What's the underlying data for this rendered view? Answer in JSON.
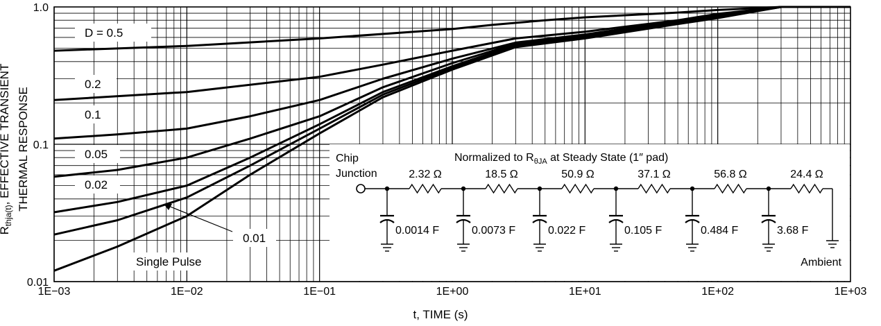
{
  "chart_data": {
    "type": "line",
    "x_scale": "log",
    "y_scale": "log",
    "xlim": [
      0.001,
      1000
    ],
    "ylim": [
      0.01,
      1.0
    ],
    "xlabel": "t, TIME (s)",
    "ylabel_line1_main": "R",
    "ylabel_line1_sub": "thja(t)",
    "ylabel_line1_rest": ", EFFECTIVE TRANSIENT",
    "ylabel_line2": "THERMAL RESPONSE",
    "x_ticks": [
      {
        "value": 0.001,
        "label": "1E−03"
      },
      {
        "value": 0.01,
        "label": "1E−02"
      },
      {
        "value": 0.1,
        "label": "1E−01"
      },
      {
        "value": 1,
        "label": "1E+00"
      },
      {
        "value": 10,
        "label": "1E+01"
      },
      {
        "value": 100,
        "label": "1E+02"
      },
      {
        "value": 1000,
        "label": "1E+03"
      }
    ],
    "y_ticks": [
      {
        "value": 0.01,
        "label": "0.01"
      },
      {
        "value": 0.1,
        "label": "0.1"
      },
      {
        "value": 1.0,
        "label": "1.0"
      }
    ],
    "grid": true,
    "series": [
      {
        "name": "D = 0.5",
        "x": [
          0.001,
          0.01,
          0.1,
          1,
          2,
          5,
          10,
          50,
          100,
          300,
          1000
        ],
        "y": [
          0.48,
          0.52,
          0.59,
          0.69,
          0.74,
          0.8,
          0.84,
          0.91,
          0.95,
          1.0,
          1.0
        ]
      },
      {
        "name": "0.2",
        "x": [
          0.001,
          0.01,
          0.1,
          0.3,
          1,
          3,
          10,
          50,
          100,
          300,
          1000
        ],
        "y": [
          0.21,
          0.24,
          0.31,
          0.38,
          0.48,
          0.59,
          0.66,
          0.8,
          0.89,
          1.0,
          1.0
        ]
      },
      {
        "name": "0.1",
        "x": [
          0.001,
          0.003,
          0.01,
          0.03,
          0.1,
          0.3,
          1,
          3,
          10,
          50,
          100,
          300,
          1000
        ],
        "y": [
          0.11,
          0.118,
          0.13,
          0.16,
          0.21,
          0.3,
          0.42,
          0.55,
          0.63,
          0.79,
          0.87,
          1.0,
          1.0
        ]
      },
      {
        "name": "0.05",
        "x": [
          0.001,
          0.003,
          0.01,
          0.03,
          0.1,
          0.3,
          1,
          3,
          10,
          50,
          100,
          300,
          1000
        ],
        "y": [
          0.058,
          0.065,
          0.08,
          0.11,
          0.16,
          0.26,
          0.39,
          0.54,
          0.62,
          0.78,
          0.86,
          1.0,
          1.0
        ]
      },
      {
        "name": "0.02",
        "x": [
          0.001,
          0.003,
          0.01,
          0.03,
          0.1,
          0.3,
          1,
          3,
          10,
          50,
          100,
          300,
          1000
        ],
        "y": [
          0.032,
          0.038,
          0.05,
          0.08,
          0.14,
          0.24,
          0.37,
          0.53,
          0.61,
          0.77,
          0.85,
          1.0,
          1.0
        ]
      },
      {
        "name": "0.01",
        "x": [
          0.001,
          0.003,
          0.01,
          0.03,
          0.1,
          0.3,
          1,
          3,
          10,
          50,
          100,
          300,
          1000
        ],
        "y": [
          0.022,
          0.028,
          0.041,
          0.07,
          0.13,
          0.23,
          0.36,
          0.52,
          0.6,
          0.76,
          0.84,
          1.0,
          1.0
        ]
      },
      {
        "name": "Single Pulse",
        "x": [
          0.001,
          0.003,
          0.01,
          0.03,
          0.1,
          0.3,
          1,
          3,
          10,
          50,
          100,
          300,
          1000
        ],
        "y": [
          0.012,
          0.018,
          0.03,
          0.06,
          0.12,
          0.22,
          0.35,
          0.51,
          0.59,
          0.75,
          0.83,
          1.0,
          1.0
        ]
      }
    ],
    "curve_labels": [
      {
        "text": "D = 0.5",
        "series": "D = 0.5"
      },
      {
        "text": "0.2",
        "series": "0.2"
      },
      {
        "text": "0.1",
        "series": "0.1"
      },
      {
        "text": "0.05",
        "series": "0.05"
      },
      {
        "text": "0.02",
        "series": "0.02"
      },
      {
        "text": "0.01",
        "series": "0.01"
      },
      {
        "text": "Single Pulse",
        "series": "Single Pulse"
      }
    ],
    "inset": {
      "title_pre": "Normalized to R",
      "title_sub": "θJA",
      "title_post": " at Steady State (1″ pad)",
      "node_label_line1": "Chip",
      "node_label_line2": "Junction",
      "end_label": "Ambient",
      "resistors": [
        "2.32 Ω",
        "18.5 Ω",
        "50.9 Ω",
        "37.1 Ω",
        "56.8 Ω",
        "24.4 Ω"
      ],
      "capacitors": [
        "0.0014 F",
        "0.0073 F",
        "0.022 F",
        "0.105 F",
        "0.484 F",
        "3.68 F"
      ]
    }
  }
}
